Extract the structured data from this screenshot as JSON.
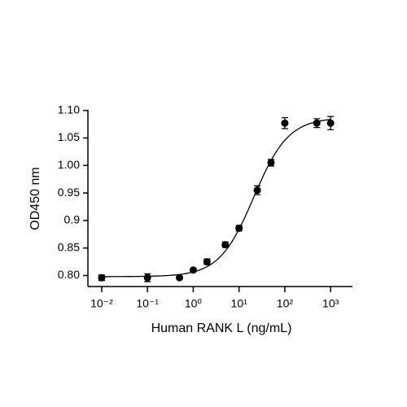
{
  "chart_data": {
    "type": "scatter",
    "x_label": "Human RANK L (ng/mL)",
    "y_label": "OD450 nm",
    "xscale": "log",
    "x": [
      0.01,
      0.1,
      0.5,
      1,
      2,
      5,
      10,
      25,
      50,
      100,
      500,
      1000
    ],
    "series": [
      {
        "color": "#000000",
        "values": [
          0.796,
          0.796,
          0.796,
          0.81,
          0.825,
          0.856,
          0.886,
          0.955,
          1.005,
          1.077,
          1.077,
          1.077
        ],
        "errors": [
          0.005,
          0.007,
          0.002,
          0.003,
          0.005,
          0.005,
          0.005,
          0.008,
          0.006,
          0.01,
          0.008,
          0.012
        ]
      }
    ],
    "fit": {
      "bottom": 0.798,
      "top": 1.087,
      "ec50": 21,
      "hill": 1.15
    },
    "xlim": [
      0.005,
      3000
    ],
    "ylim": [
      0.78,
      1.1
    ],
    "xticks": [
      {
        "value": 0.01,
        "label": "10⁻²"
      },
      {
        "value": 0.1,
        "label": "10⁻¹"
      },
      {
        "value": 1,
        "label": "10⁰"
      },
      {
        "value": 10,
        "label": "10¹"
      },
      {
        "value": 100,
        "label": "10²"
      },
      {
        "value": 1000,
        "label": "10³"
      }
    ],
    "yticks": [
      {
        "value": 0.8,
        "label": "0.80"
      },
      0.85,
      0.9,
      0.95,
      {
        "value": 1.0,
        "label": "1.00"
      },
      1.05,
      {
        "value": 1.1,
        "label": "1.10"
      }
    ]
  }
}
